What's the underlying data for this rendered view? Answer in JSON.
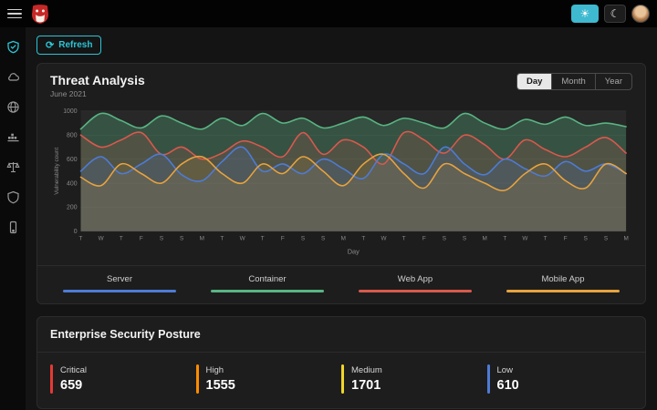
{
  "topbar": {
    "theme_light_glyph": "☀",
    "theme_dark_glyph": "☾"
  },
  "toolbar": {
    "refresh_label": "Refresh",
    "refresh_glyph": "⟳"
  },
  "threat_card": {
    "title": "Threat Analysis",
    "subtitle": "June 2021",
    "tabs": [
      {
        "label": "Day",
        "active": true
      },
      {
        "label": "Month",
        "active": false
      },
      {
        "label": "Year",
        "active": false
      }
    ]
  },
  "chart_data": {
    "type": "line",
    "x": [
      "T",
      "W",
      "T",
      "F",
      "S",
      "S",
      "M",
      "T",
      "W",
      "T",
      "F",
      "S",
      "S",
      "M",
      "T",
      "W",
      "T",
      "F",
      "S",
      "S",
      "M",
      "T",
      "W",
      "T",
      "F",
      "S",
      "S",
      "M"
    ],
    "xlabel": "Day",
    "ylabel": "Vulnerability count",
    "ylim": [
      0,
      1000
    ],
    "yticks": [
      0,
      200,
      400,
      600,
      800,
      1000
    ],
    "legend_position": "bottom",
    "grid": true,
    "series": [
      {
        "name": "Server",
        "color": "#4d7cd6",
        "values": [
          500,
          620,
          480,
          560,
          640,
          470,
          420,
          580,
          700,
          500,
          560,
          480,
          600,
          520,
          440,
          640,
          560,
          480,
          700,
          560,
          470,
          600,
          520,
          460,
          580,
          500,
          560,
          480
        ]
      },
      {
        "name": "Container",
        "color": "#58b583",
        "values": [
          850,
          980,
          920,
          860,
          960,
          900,
          850,
          940,
          880,
          980,
          900,
          940,
          860,
          900,
          950,
          880,
          940,
          900,
          860,
          980,
          900,
          850,
          930,
          890,
          950,
          880,
          900,
          870
        ]
      },
      {
        "name": "Web App",
        "color": "#d9594c",
        "values": [
          800,
          700,
          760,
          820,
          640,
          700,
          600,
          650,
          750,
          700,
          620,
          820,
          640,
          760,
          700,
          560,
          820,
          760,
          650,
          800,
          720,
          600,
          760,
          680,
          620,
          700,
          780,
          650
        ]
      },
      {
        "name": "Mobile App",
        "color": "#e8a33d",
        "values": [
          450,
          380,
          560,
          480,
          400,
          560,
          620,
          480,
          400,
          560,
          480,
          620,
          500,
          380,
          560,
          640,
          480,
          360,
          560,
          480,
          400,
          340,
          480,
          560,
          420,
          360,
          560,
          480
        ]
      }
    ]
  },
  "posture_card": {
    "title": "Enterprise Security Posture",
    "stats": [
      {
        "label": "Critical",
        "value": "659",
        "color": "#e53935"
      },
      {
        "label": "High",
        "value": "1555",
        "color": "#fb8c00"
      },
      {
        "label": "Medium",
        "value": "1701",
        "color": "#f0d52b"
      },
      {
        "label": "Low",
        "value": "610",
        "color": "#4d7cd6"
      }
    ]
  }
}
